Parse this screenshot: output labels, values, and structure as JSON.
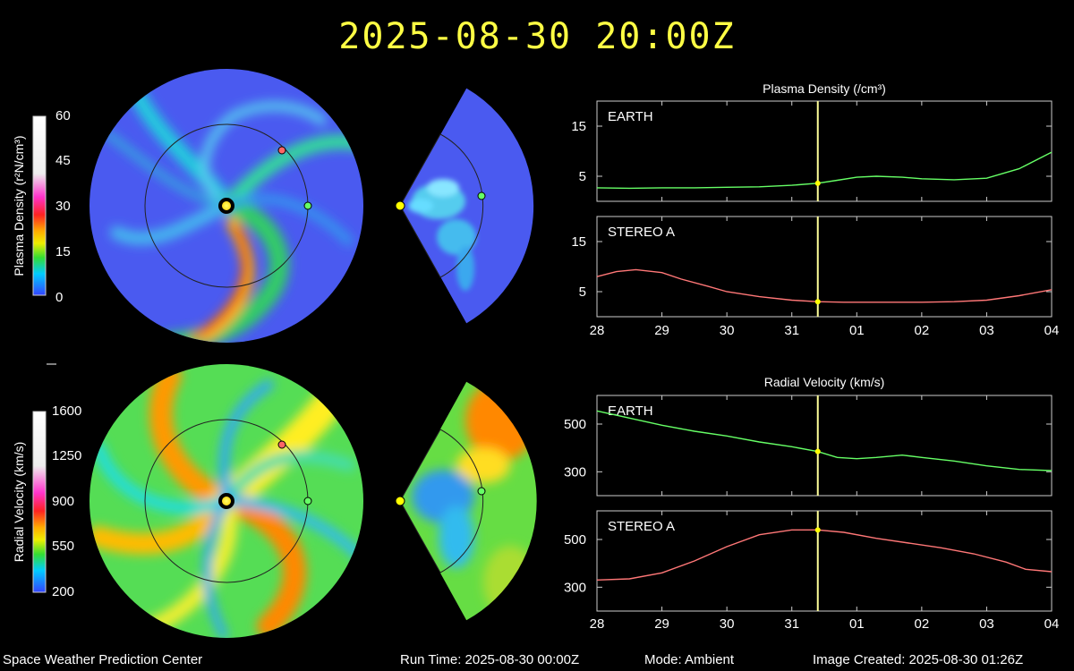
{
  "header": {
    "title": "2025-08-30  20:00Z"
  },
  "footer": {
    "center": "Space Weather Prediction Center",
    "run_time": "Run Time: 2025-08-30 00:00Z",
    "mode": "Mode: Ambient",
    "image_created": "Image Created: 2025-08-30 01:26Z"
  },
  "colors": {
    "earth": "#66ff66",
    "stereo_a": "#ff7777",
    "sun": "#ffff00",
    "time_marker": "#ffff99",
    "background_low": "#4a5af0"
  },
  "colorbars": [
    {
      "label": "Plasma Density (r²N/cm³)",
      "ticks": [
        "60",
        "45",
        "30",
        "15",
        "0"
      ]
    },
    {
      "label": "Radial Velocity (km/s)",
      "ticks": [
        "1600",
        "1250",
        "900",
        "550",
        "200"
      ]
    }
  ],
  "chart_data": [
    {
      "type": "line",
      "title": "Plasma Density (/cm³)",
      "x_ticks": [
        "28",
        "29",
        "30",
        "31",
        "01",
        "02",
        "03",
        "04"
      ],
      "xlim": [
        0,
        7
      ],
      "time_marker": 3.4,
      "panels": [
        {
          "name": "EARTH",
          "ylim": [
            0,
            20
          ],
          "yticks": [
            "15",
            "5"
          ],
          "ytick_values": [
            15,
            5
          ],
          "x": [
            0,
            0.5,
            1,
            1.5,
            2,
            2.5,
            3,
            3.4,
            3.7,
            4,
            4.3,
            4.7,
            5,
            5.5,
            6,
            6.5,
            7
          ],
          "y": [
            2.7,
            2.6,
            2.7,
            2.7,
            2.8,
            2.9,
            3.2,
            3.6,
            4.2,
            4.8,
            5.0,
            4.8,
            4.5,
            4.3,
            4.6,
            6.5,
            9.8
          ]
        },
        {
          "name": "STEREO A",
          "ylim": [
            0,
            20
          ],
          "yticks": [
            "15",
            "5"
          ],
          "ytick_values": [
            15,
            5
          ],
          "x": [
            0,
            0.3,
            0.6,
            1,
            1.3,
            1.7,
            2,
            2.5,
            3,
            3.4,
            3.8,
            4.5,
            5,
            5.5,
            6,
            6.5,
            7
          ],
          "y": [
            8.0,
            9.0,
            9.4,
            8.8,
            7.5,
            6.1,
            5.0,
            4.0,
            3.3,
            3.0,
            2.9,
            2.9,
            2.9,
            3.0,
            3.3,
            4.2,
            5.4
          ]
        }
      ]
    },
    {
      "type": "line",
      "title": "Radial Velocity (km/s)",
      "x_ticks": [
        "28",
        "29",
        "30",
        "31",
        "01",
        "02",
        "03",
        "04"
      ],
      "xlim": [
        0,
        7
      ],
      "time_marker": 3.4,
      "panels": [
        {
          "name": "EARTH",
          "ylim": [
            200,
            620
          ],
          "yticks": [
            "500",
            "300"
          ],
          "ytick_values": [
            500,
            300
          ],
          "x": [
            0,
            0.5,
            1,
            1.5,
            2,
            2.5,
            3,
            3.4,
            3.7,
            4,
            4.3,
            4.7,
            5,
            5.5,
            6,
            6.5,
            7
          ],
          "y": [
            555,
            525,
            495,
            470,
            450,
            425,
            405,
            385,
            360,
            355,
            360,
            370,
            360,
            345,
            325,
            310,
            305
          ]
        },
        {
          "name": "STEREO A",
          "ylim": [
            200,
            620
          ],
          "yticks": [
            "500",
            "300"
          ],
          "ytick_values": [
            500,
            300
          ],
          "x": [
            0,
            0.5,
            1,
            1.5,
            2,
            2.5,
            3,
            3.4,
            3.8,
            4.3,
            4.8,
            5.3,
            5.8,
            6.3,
            6.6,
            7
          ],
          "y": [
            330,
            335,
            360,
            410,
            470,
            520,
            540,
            540,
            530,
            505,
            485,
            465,
            440,
            405,
            375,
            365
          ]
        }
      ]
    }
  ]
}
